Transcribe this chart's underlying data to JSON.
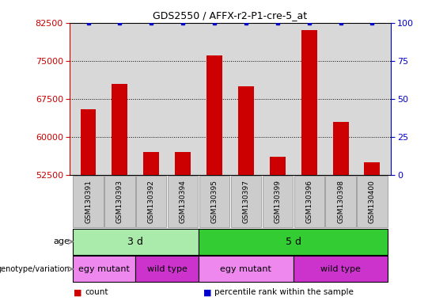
{
  "title": "GDS2550 / AFFX-r2-P1-cre-5_at",
  "samples": [
    "GSM130391",
    "GSM130393",
    "GSM130392",
    "GSM130394",
    "GSM130395",
    "GSM130397",
    "GSM130399",
    "GSM130396",
    "GSM130398",
    "GSM130400"
  ],
  "counts": [
    65500,
    70500,
    57000,
    57000,
    76000,
    70000,
    56000,
    81000,
    63000,
    55000
  ],
  "bar_color": "#cc0000",
  "dot_color": "#0000cc",
  "ylim_left": [
    52500,
    82500
  ],
  "yticks_left": [
    52500,
    60000,
    67500,
    75000,
    82500
  ],
  "ylim_right": [
    0,
    100
  ],
  "yticks_right": [
    0,
    25,
    50,
    75,
    100
  ],
  "ylabel_left_color": "#cc0000",
  "ylabel_right_color": "#0000cc",
  "age_groups": [
    {
      "label": "3 d",
      "start": 0,
      "end": 4,
      "color": "#aaeaaa"
    },
    {
      "label": "5 d",
      "start": 4,
      "end": 10,
      "color": "#33cc33"
    }
  ],
  "genotype_groups": [
    {
      "label": "egy mutant",
      "start": 0,
      "end": 2,
      "color": "#ee88ee"
    },
    {
      "label": "wild type",
      "start": 2,
      "end": 4,
      "color": "#cc33cc"
    },
    {
      "label": "egy mutant",
      "start": 4,
      "end": 7,
      "color": "#ee88ee"
    },
    {
      "label": "wild type",
      "start": 7,
      "end": 10,
      "color": "#cc33cc"
    }
  ],
  "legend_items": [
    {
      "label": "count",
      "color": "#cc0000"
    },
    {
      "label": "percentile rank within the sample",
      "color": "#0000cc"
    }
  ],
  "age_label": "age",
  "genotype_label": "genotype/variation",
  "background_color": "#ffffff",
  "plot_bg_color": "#d8d8d8",
  "sample_box_color": "#cccccc",
  "bar_width": 0.5
}
